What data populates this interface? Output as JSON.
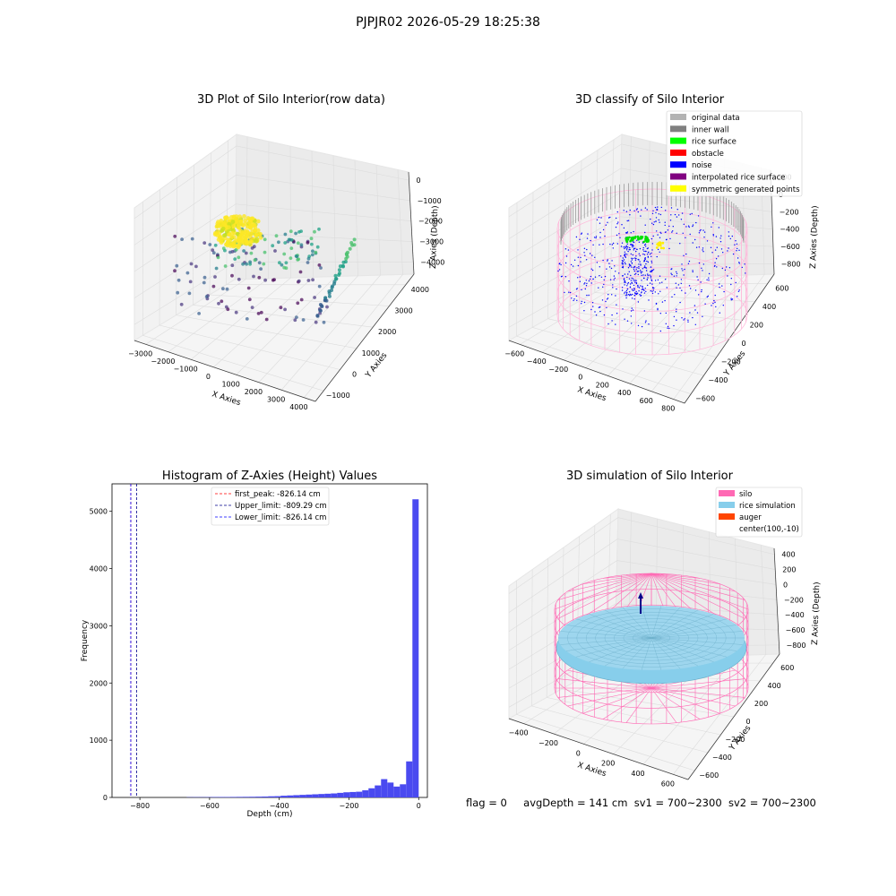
{
  "suptitle": "PJPJR02 2026-05-29 18:25:38",
  "footer": {
    "flag": "flag = 0",
    "avg_depth": "avgDepth = 141 cm",
    "sv1": "sv1 = 700~2300",
    "sv2": "sv2 = 700~2300"
  },
  "chart_data": [
    {
      "type": "scatter",
      "subtype": "3d",
      "title": "3D Plot of Silo Interior(row data)",
      "xlabel": "X Axies",
      "ylabel": "Y Axies",
      "zlabel": "Z Axies (Depth)",
      "x_ticks": [
        "−3000",
        "−2000",
        "−1000",
        "0",
        "1000",
        "2000",
        "3000",
        "4000"
      ],
      "y_ticks": [
        "−1000",
        "0",
        "1000",
        "2000",
        "3000",
        "4000"
      ],
      "z_ticks": [
        "0",
        "−1000",
        "−2000",
        "−3000",
        "−4000"
      ],
      "colormap": "viridis"
    },
    {
      "type": "scatter",
      "subtype": "3d",
      "title": "3D classify of Silo Interior",
      "xlabel": "X Axies",
      "ylabel": "Y Axies",
      "zlabel": "Z Axies (Depth)",
      "x_ticks": [
        "−600",
        "−400",
        "−200",
        "0",
        "200",
        "400",
        "600",
        "800"
      ],
      "y_ticks": [
        "−600",
        "−400",
        "−200",
        "0",
        "200",
        "400",
        "600"
      ],
      "z_ticks": [
        "200",
        "0",
        "−200",
        "−400",
        "−600",
        "−800"
      ],
      "z_top_tick_partial": "00",
      "legend": [
        {
          "label": "original data",
          "color": "#b3b3b3"
        },
        {
          "label": "inner wall",
          "color": "#808080"
        },
        {
          "label": "rice surface",
          "color": "#00ff00"
        },
        {
          "label": "obstacle",
          "color": "#ff0000"
        },
        {
          "label": "noise",
          "color": "#0000ff"
        },
        {
          "label": "interpolated rice surface",
          "color": "#800080"
        },
        {
          "label": "symmetric generated points",
          "color": "#ffff00"
        }
      ],
      "legend_position": "upper right"
    },
    {
      "type": "bar",
      "subtype": "histogram",
      "title": "Histogram of Z-Axies (Height) Values",
      "xlabel": "Depth (cm)",
      "ylabel": "Frequency",
      "xlim": [
        -880,
        25
      ],
      "ylim": [
        0,
        5480
      ],
      "x_ticks": [
        -800,
        -600,
        -400,
        -200,
        0
      ],
      "x_tick_labels": [
        "−800",
        "−600",
        "−400",
        "−200",
        "0"
      ],
      "y_ticks": [
        0,
        1000,
        2000,
        3000,
        4000,
        5000
      ],
      "bar_color": "#4a4af0",
      "bin_width": 18,
      "bins": [
        {
          "x0": -666,
          "count": 4
        },
        {
          "x0": -648,
          "count": 5
        },
        {
          "x0": -630,
          "count": 5
        },
        {
          "x0": -612,
          "count": 6
        },
        {
          "x0": -594,
          "count": 7
        },
        {
          "x0": -576,
          "count": 8
        },
        {
          "x0": -558,
          "count": 8
        },
        {
          "x0": -540,
          "count": 9
        },
        {
          "x0": -522,
          "count": 10
        },
        {
          "x0": -504,
          "count": 11
        },
        {
          "x0": -486,
          "count": 12
        },
        {
          "x0": -468,
          "count": 14
        },
        {
          "x0": -450,
          "count": 16
        },
        {
          "x0": -432,
          "count": 20
        },
        {
          "x0": -414,
          "count": 22
        },
        {
          "x0": -396,
          "count": 30
        },
        {
          "x0": -378,
          "count": 35
        },
        {
          "x0": -360,
          "count": 40
        },
        {
          "x0": -342,
          "count": 45
        },
        {
          "x0": -324,
          "count": 50
        },
        {
          "x0": -306,
          "count": 55
        },
        {
          "x0": -288,
          "count": 60
        },
        {
          "x0": -270,
          "count": 65
        },
        {
          "x0": -252,
          "count": 70
        },
        {
          "x0": -234,
          "count": 80
        },
        {
          "x0": -216,
          "count": 90
        },
        {
          "x0": -198,
          "count": 95
        },
        {
          "x0": -180,
          "count": 100
        },
        {
          "x0": -162,
          "count": 125
        },
        {
          "x0": -144,
          "count": 160
        },
        {
          "x0": -126,
          "count": 210
        },
        {
          "x0": -108,
          "count": 320
        },
        {
          "x0": -90,
          "count": 260
        },
        {
          "x0": -72,
          "count": 190
        },
        {
          "x0": -54,
          "count": 230
        },
        {
          "x0": -36,
          "count": 630
        },
        {
          "x0": -18,
          "count": 5210
        }
      ],
      "vlines": [
        {
          "x": -826.14,
          "color": "#ff0000",
          "label": "first_peak: -826.14 cm"
        },
        {
          "x": -809.29,
          "color": "#00008b",
          "label": "Upper_limit: -809.29 cm"
        },
        {
          "x": -826.14,
          "color": "#0000ff",
          "label": "Lower_limit: -826.14 cm"
        }
      ],
      "legend_position": "upper center"
    },
    {
      "type": "scatter",
      "subtype": "3d-surface",
      "title": "3D simulation of Silo Interior",
      "xlabel": "X Axies",
      "ylabel": "Y Axies",
      "zlabel": "Z Axies (Depth)",
      "x_ticks": [
        "−400",
        "−200",
        "0",
        "200",
        "400",
        "600"
      ],
      "y_ticks": [
        "−600",
        "−400",
        "−200",
        "0",
        "200",
        "400",
        "600"
      ],
      "z_ticks": [
        "400",
        "200",
        "0",
        "−200",
        "−400",
        "−600",
        "−800"
      ],
      "legend": [
        {
          "label": "silo",
          "color": "#ff69b4"
        },
        {
          "label": "rice simulation",
          "color": "#87ceeb"
        },
        {
          "label": "auger",
          "color": "#ff4500"
        },
        {
          "label": "center(100,-10)",
          "color": ""
        }
      ],
      "legend_position": "upper right"
    }
  ]
}
